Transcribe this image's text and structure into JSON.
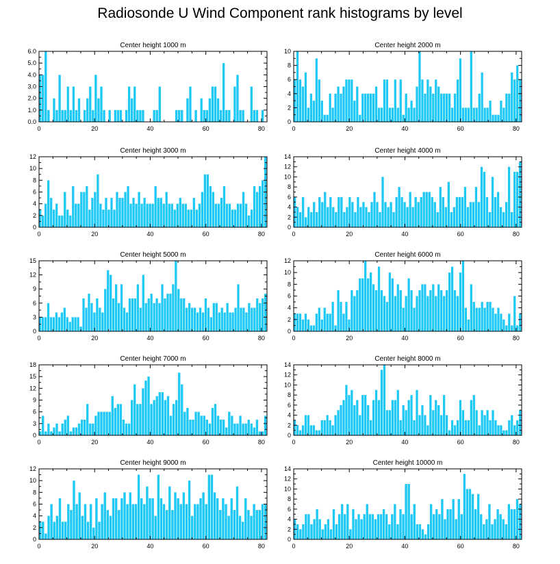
{
  "title": "Radiosonde U Wind Component rank histograms by level",
  "colors": {
    "bar": "#1ec8f5",
    "axis": "#000000",
    "background": "#ffffff"
  },
  "chart_data": [
    {
      "type": "bar",
      "title": "Center height 1000 m",
      "xlim": [
        0,
        82
      ],
      "ylim": [
        0,
        6
      ],
      "yticks": [
        "0.0",
        "1.0",
        "2.0",
        "3.0",
        "4.0",
        "5.0",
        "6.0"
      ],
      "xticks": [
        "0",
        "20",
        "40",
        "60",
        "80"
      ],
      "values": [
        4,
        4,
        6,
        1,
        0,
        2,
        1,
        4,
        1,
        1,
        3,
        1,
        3,
        1,
        2,
        0,
        1,
        2,
        3,
        1,
        4,
        2,
        3,
        1,
        0,
        1,
        0,
        1,
        1,
        1,
        0,
        1,
        3,
        2,
        3,
        1,
        1,
        1,
        0,
        0,
        0,
        1,
        1,
        3,
        0,
        0,
        0,
        0,
        0,
        1,
        1,
        1,
        0,
        2,
        3,
        0,
        1,
        0,
        2,
        1,
        1,
        2,
        3,
        3,
        2,
        1,
        5,
        1,
        1,
        0,
        3,
        4,
        1,
        1,
        0,
        0,
        3,
        1,
        1,
        0,
        1,
        0
      ]
    },
    {
      "type": "bar",
      "title": "Center height 2000 m",
      "xlim": [
        0,
        82
      ],
      "ylim": [
        0,
        10
      ],
      "yticks": [
        "0",
        "2",
        "4",
        "6",
        "8",
        "10"
      ],
      "xticks": [
        "0",
        "20",
        "40",
        "60",
        "80"
      ],
      "values": [
        6,
        10,
        6,
        5,
        7,
        2,
        4,
        3,
        9,
        6,
        3,
        1,
        1,
        4,
        2,
        4,
        5,
        4,
        5,
        6,
        6,
        6,
        3,
        5,
        1,
        4,
        4,
        4,
        4,
        4,
        5,
        2,
        2,
        6,
        6,
        2,
        2,
        6,
        2,
        6,
        1,
        4,
        2,
        3,
        2,
        5,
        10,
        6,
        4,
        6,
        5,
        4,
        6,
        5,
        4,
        4,
        4,
        4,
        2,
        4,
        6,
        9,
        2,
        2,
        2,
        10,
        2,
        2,
        4,
        7,
        2,
        2,
        3,
        1,
        1,
        1,
        3,
        2,
        4,
        4,
        7,
        6,
        8,
        6
      ]
    },
    {
      "type": "bar",
      "title": "Center height 3000 m",
      "xlim": [
        0,
        82
      ],
      "ylim": [
        0,
        12
      ],
      "yticks": [
        "0",
        "2",
        "4",
        "6",
        "8",
        "10",
        "12"
      ],
      "xticks": [
        "0",
        "20",
        "40",
        "60",
        "80"
      ],
      "values": [
        3,
        2,
        4,
        8,
        5,
        3,
        4,
        2,
        2,
        6,
        3,
        2,
        7,
        4,
        4,
        6,
        6,
        7,
        3,
        5,
        6,
        9,
        4,
        3,
        5,
        3,
        5,
        3,
        6,
        5,
        5,
        6,
        7,
        4,
        5,
        4,
        6,
        4,
        5,
        4,
        4,
        4,
        7,
        5,
        5,
        4,
        6,
        4,
        4,
        3,
        4,
        5,
        4,
        4,
        3,
        3,
        5,
        3,
        4,
        6,
        9,
        9,
        7,
        6,
        4,
        4,
        5,
        7,
        4,
        4,
        3,
        3,
        4,
        4,
        6,
        4,
        2,
        3,
        7,
        6,
        7,
        8,
        12
      ]
    },
    {
      "type": "bar",
      "title": "Center height 4000 m",
      "xlim": [
        0,
        82
      ],
      "ylim": [
        0,
        14
      ],
      "yticks": [
        "0",
        "2",
        "4",
        "6",
        "8",
        "10",
        "12",
        "14"
      ],
      "xticks": [
        "0",
        "20",
        "40",
        "60",
        "80"
      ],
      "values": [
        6,
        4,
        3,
        6,
        2,
        4,
        3,
        5,
        3,
        6,
        5,
        7,
        4,
        6,
        4,
        3,
        6,
        6,
        3,
        4,
        6,
        5,
        3,
        6,
        4,
        5,
        4,
        3,
        5,
        7,
        5,
        3,
        10,
        5,
        4,
        5,
        3,
        6,
        8,
        6,
        5,
        4,
        7,
        4,
        6,
        5,
        6,
        7,
        7,
        7,
        6,
        5,
        3,
        8,
        6,
        4,
        9,
        3,
        4,
        6,
        6,
        6,
        8,
        4,
        5,
        5,
        8,
        5,
        12,
        11,
        6,
        3,
        10,
        6,
        7,
        4,
        3,
        5,
        12,
        3,
        11,
        11,
        13
      ]
    },
    {
      "type": "bar",
      "title": "Center height 5000 m",
      "xlim": [
        0,
        82
      ],
      "ylim": [
        0,
        15
      ],
      "yticks": [
        "0",
        "3",
        "6",
        "9",
        "12",
        "15"
      ],
      "xticks": [
        "0",
        "20",
        "40",
        "60",
        "80"
      ],
      "values": [
        3,
        3,
        3,
        6,
        3,
        3,
        4,
        3,
        4,
        5,
        3,
        2,
        3,
        3,
        3,
        1,
        7,
        5,
        8,
        6,
        4,
        7,
        5,
        4,
        9,
        13,
        12,
        7,
        10,
        6,
        10,
        5,
        4,
        7,
        7,
        7,
        10,
        5,
        12,
        6,
        7,
        8,
        6,
        7,
        6,
        10,
        7,
        8,
        8,
        10,
        15,
        9,
        7,
        7,
        5,
        6,
        5,
        5,
        4,
        5,
        4,
        7,
        5,
        3,
        6,
        6,
        4,
        5,
        4,
        6,
        4,
        4,
        5,
        10,
        5,
        5,
        4,
        6,
        5,
        5,
        7,
        6,
        7,
        8
      ]
    },
    {
      "type": "bar",
      "title": "Center height 6000 m",
      "xlim": [
        0,
        82
      ],
      "ylim": [
        0,
        12
      ],
      "yticks": [
        "0",
        "2",
        "4",
        "6",
        "8",
        "10",
        "12"
      ],
      "xticks": [
        "0",
        "20",
        "40",
        "60",
        "80"
      ],
      "values": [
        3,
        3,
        3,
        2,
        3,
        2,
        1,
        1,
        3,
        4,
        2,
        4,
        3,
        3,
        5,
        1,
        7,
        5,
        3,
        5,
        2,
        7,
        6,
        7,
        9,
        9,
        12,
        9,
        10,
        8,
        7,
        11,
        7,
        6,
        5,
        10,
        9,
        6,
        8,
        7,
        4,
        6,
        9,
        7,
        4,
        6,
        7,
        8,
        8,
        6,
        7,
        8,
        6,
        8,
        7,
        6,
        7,
        10,
        11,
        7,
        6,
        10,
        12,
        4,
        2,
        8,
        5,
        4,
        4,
        5,
        4,
        5,
        5,
        4,
        3,
        4,
        3,
        2,
        1,
        3,
        1,
        6,
        1,
        3
      ]
    },
    {
      "type": "bar",
      "title": "Center height 7000 m",
      "xlim": [
        0,
        82
      ],
      "ylim": [
        0,
        18
      ],
      "yticks": [
        "0",
        "3",
        "6",
        "9",
        "12",
        "15",
        "18"
      ],
      "xticks": [
        "0",
        "20",
        "40",
        "60",
        "80"
      ],
      "values": [
        1,
        5,
        1,
        3,
        1,
        2,
        3,
        1,
        3,
        4,
        5,
        1,
        2,
        2,
        3,
        4,
        4,
        8,
        3,
        3,
        5,
        6,
        6,
        6,
        6,
        6,
        10,
        7,
        8,
        8,
        4,
        3,
        3,
        9,
        13,
        8,
        8,
        12,
        14,
        15,
        8,
        9,
        10,
        11,
        11,
        9,
        10,
        5,
        8,
        9,
        16,
        13,
        6,
        7,
        4,
        4,
        6,
        6,
        5,
        5,
        4,
        3,
        7,
        8,
        5,
        4,
        4,
        2,
        6,
        5,
        3,
        3,
        5,
        3,
        3,
        4,
        3,
        2,
        4,
        1,
        1,
        5
      ]
    },
    {
      "type": "bar",
      "title": "Center height 8000 m",
      "xlim": [
        0,
        82
      ],
      "ylim": [
        0,
        14
      ],
      "yticks": [
        "0",
        "2",
        "4",
        "6",
        "8",
        "10",
        "12",
        "14"
      ],
      "xticks": [
        "0",
        "20",
        "40",
        "60",
        "80"
      ],
      "values": [
        3,
        2,
        1,
        2,
        4,
        4,
        2,
        2,
        1,
        1,
        3,
        3,
        4,
        3,
        2,
        4,
        5,
        6,
        7,
        10,
        8,
        9,
        6,
        7,
        4,
        8,
        8,
        6,
        3,
        7,
        9,
        7,
        13,
        14,
        5,
        5,
        7,
        7,
        9,
        3,
        6,
        5,
        7,
        8,
        3,
        9,
        4,
        6,
        4,
        2,
        8,
        5,
        7,
        6,
        4,
        8,
        4,
        1,
        3,
        2,
        3,
        7,
        5,
        3,
        3,
        7,
        8,
        5,
        2,
        5,
        4,
        5,
        3,
        5,
        3,
        2,
        2,
        1,
        1,
        3,
        4,
        2,
        3,
        5
      ]
    },
    {
      "type": "bar",
      "title": "Center height 9000 m",
      "xlim": [
        0,
        82
      ],
      "ylim": [
        0,
        12
      ],
      "yticks": [
        "0",
        "2",
        "4",
        "6",
        "8",
        "10",
        "12"
      ],
      "xticks": [
        "0",
        "20",
        "40",
        "60",
        "80"
      ],
      "values": [
        3,
        3,
        1,
        4,
        6,
        3,
        4,
        7,
        3,
        3,
        6,
        5,
        10,
        6,
        8,
        4,
        6,
        3,
        6,
        2,
        7,
        3,
        6,
        8,
        5,
        4,
        7,
        7,
        5,
        7,
        8,
        6,
        8,
        6,
        6,
        11,
        7,
        6,
        9,
        7,
        7,
        4,
        11,
        7,
        6,
        5,
        9,
        5,
        8,
        7,
        6,
        8,
        6,
        10,
        4,
        6,
        6,
        7,
        8,
        6,
        11,
        11,
        8,
        7,
        5,
        7,
        6,
        4,
        7,
        5,
        9,
        4,
        3,
        7,
        5,
        4,
        6,
        5,
        5,
        6,
        6
      ]
    },
    {
      "type": "bar",
      "title": "Center height 10000 m",
      "xlim": [
        0,
        82
      ],
      "ylim": [
        0,
        14
      ],
      "yticks": [
        "0",
        "2",
        "4",
        "6",
        "8",
        "10",
        "12",
        "14"
      ],
      "xticks": [
        "0",
        "20",
        "40",
        "60",
        "80"
      ],
      "values": [
        4,
        3,
        2,
        3,
        5,
        5,
        3,
        4,
        6,
        4,
        2,
        3,
        4,
        2,
        6,
        3,
        5,
        7,
        5,
        7,
        2,
        6,
        4,
        5,
        4,
        5,
        7,
        5,
        5,
        4,
        5,
        5,
        6,
        5,
        3,
        5,
        7,
        3,
        6,
        5,
        11,
        11,
        5,
        7,
        3,
        3,
        2,
        1,
        3,
        7,
        5,
        6,
        5,
        8,
        4,
        6,
        6,
        8,
        4,
        8,
        5,
        13,
        10,
        10,
        9,
        6,
        9,
        5,
        3,
        4,
        7,
        3,
        4,
        6,
        5,
        4,
        3,
        7,
        6,
        6,
        8,
        7
      ]
    }
  ]
}
